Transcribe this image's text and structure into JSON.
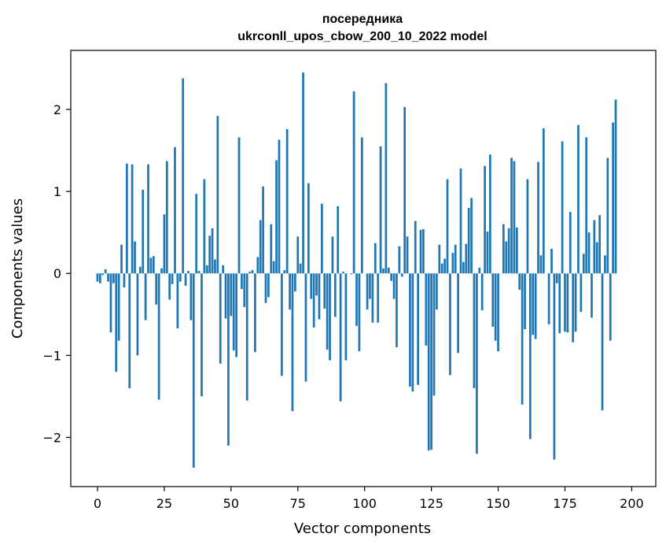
{
  "chart_data": {
    "type": "bar",
    "title_line1": "посередника",
    "title_line2": "ukrconll_upos_cbow_200_10_2022 model",
    "xlabel": "Vector components",
    "ylabel": "Components values",
    "xlim": [
      -10,
      209
    ],
    "ylim": [
      -2.6,
      2.72
    ],
    "xticks": [
      0,
      25,
      50,
      75,
      100,
      125,
      150,
      175,
      200
    ],
    "xtick_labels": [
      "0",
      "25",
      "50",
      "75",
      "100",
      "125",
      "150",
      "175",
      "200"
    ],
    "yticks": [
      -2,
      -1,
      0,
      1,
      2
    ],
    "ytick_labels": [
      "−2",
      "−1",
      "0",
      "1",
      "2"
    ],
    "bar_color": "#1f77b4",
    "values": [
      -0.1,
      -0.12,
      -0.02,
      0.05,
      -0.1,
      -0.72,
      -0.12,
      -1.2,
      -0.82,
      0.35,
      -0.17,
      1.34,
      -1.4,
      1.33,
      0.39,
      -1.0,
      0.08,
      1.02,
      -0.57,
      1.33,
      0.19,
      0.21,
      -0.38,
      -1.54,
      0.06,
      0.72,
      1.37,
      -0.32,
      -0.13,
      1.54,
      -0.67,
      -0.1,
      2.38,
      -0.15,
      0.03,
      -0.57,
      -2.37,
      0.97,
      0.03,
      -1.5,
      1.15,
      0.1,
      0.46,
      0.55,
      0.17,
      1.92,
      -1.1,
      0.1,
      -0.55,
      -2.1,
      -0.52,
      -0.94,
      -1.02,
      1.66,
      -0.19,
      -0.41,
      -1.55,
      0.02,
      0.04,
      -0.96,
      0.2,
      0.65,
      1.06,
      -0.36,
      -0.29,
      0.6,
      0.15,
      1.38,
      1.63,
      -1.25,
      0.04,
      1.76,
      -0.44,
      -1.68,
      -0.22,
      0.45,
      0.12,
      2.45,
      -1.32,
      1.1,
      -0.31,
      -0.66,
      -0.27,
      -0.56,
      0.85,
      -0.43,
      -0.93,
      -1.06,
      0.45,
      -0.53,
      0.82,
      -1.56,
      0.02,
      -1.06,
      0.0,
      -0.01,
      2.22,
      -0.64,
      -0.95,
      1.66,
      0.0,
      -0.44,
      -0.31,
      -0.6,
      0.37,
      -0.6,
      1.55,
      0.06,
      2.32,
      0.07,
      -0.09,
      -0.31,
      -0.9,
      0.33,
      -0.04,
      2.03,
      0.45,
      -1.38,
      -1.44,
      0.64,
      -1.36,
      0.53,
      0.54,
      -0.88,
      -2.16,
      -2.15,
      -1.49,
      -0.44,
      0.35,
      0.12,
      0.18,
      1.15,
      -1.24,
      0.25,
      0.35,
      -0.97,
      1.28,
      0.14,
      0.36,
      0.8,
      0.92,
      -1.4,
      -2.2,
      0.07,
      -0.45,
      1.31,
      0.51,
      1.45,
      -0.65,
      -0.82,
      -0.95,
      0.0,
      0.6,
      0.39,
      0.55,
      1.41,
      1.37,
      0.56,
      -0.2,
      -1.6,
      -0.68,
      1.15,
      -2.02,
      -0.75,
      -0.8,
      1.36,
      0.22,
      1.77,
      0.0,
      -0.62,
      0.3,
      -2.27,
      -0.12,
      -0.73,
      1.61,
      -0.71,
      -0.72,
      0.75,
      -0.84,
      -0.71,
      1.81,
      -0.47,
      0.24,
      1.66,
      0.5,
      -0.54,
      0.65,
      0.38,
      0.71,
      -1.67,
      0.22,
      1.41,
      -0.82,
      1.84,
      2.12
    ]
  }
}
